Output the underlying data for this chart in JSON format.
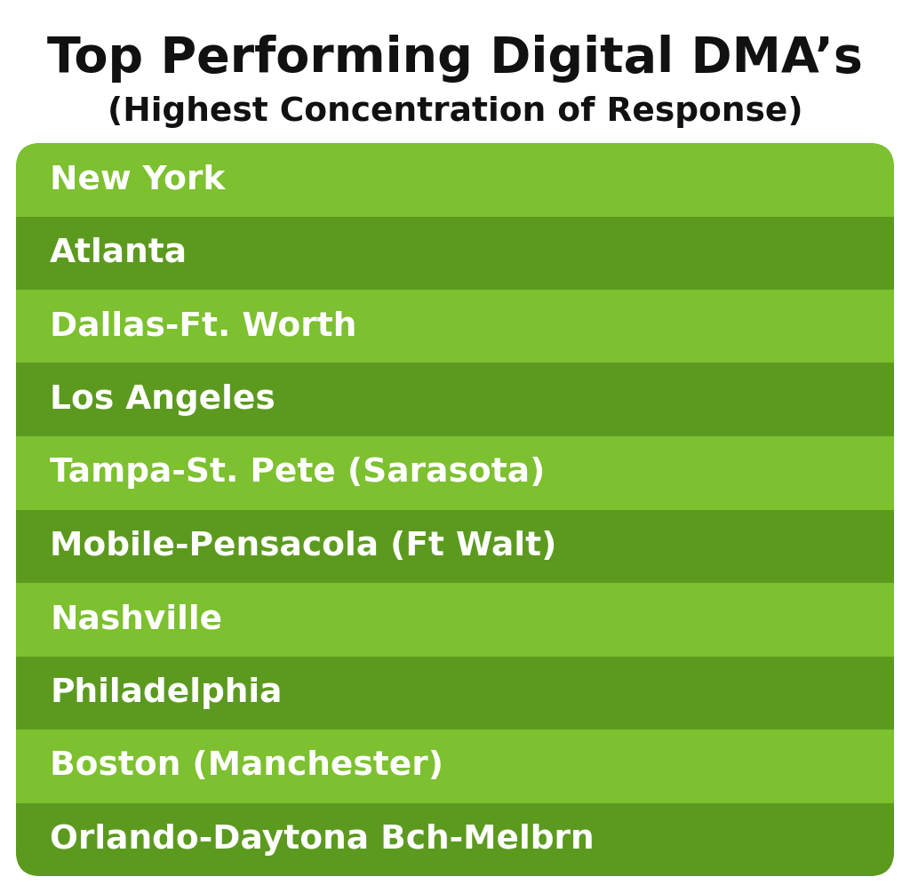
{
  "title_line1": "Top Performing Digital DMA’s",
  "title_line2": "(Highest Concentration of Response)",
  "title_fontsize": 40,
  "subtitle_fontsize": 27,
  "items": [
    "New York",
    "Atlanta",
    "Dallas-Ft. Worth",
    "Los Angeles",
    "Tampa-St. Pete (Sarasota)",
    "Mobile-Pensacola (Ft Walt)",
    "Nashville",
    "Philadelphia",
    "Boston (Manchester)",
    "Orlando-Daytona Bch-Melbrn"
  ],
  "row_color_light": "#7DC030",
  "row_color_dark": "#5C9A1F",
  "text_color": "#FFFFFF",
  "background_color": "#FFFFFF",
  "box_bg_color": "#6BAD1E",
  "item_fontsize": 27,
  "title_color": "#111111",
  "fig_width": 10.24,
  "fig_height": 9.96,
  "dpi": 100
}
